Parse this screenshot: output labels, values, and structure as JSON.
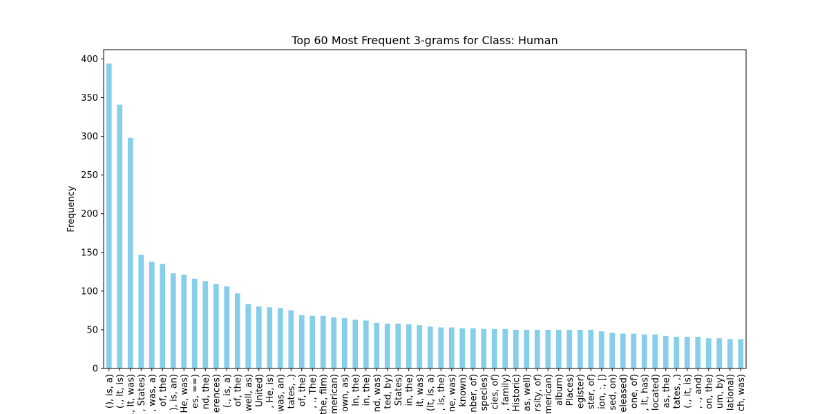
{
  "chart_data": {
    "type": "bar",
    "title": "Top 60 Most Frequent 3-grams for Class: Human",
    "xlabel": "",
    "ylabel": "Frequency",
    "ylim": [
      0,
      412
    ],
    "yticks": [
      0,
      50,
      100,
      150,
      200,
      250,
      300,
      350,
      400
    ],
    "grid": false,
    "legend": "none",
    "bar_color": "#87ceeb",
    "categories": [
      "(), is, a)",
      "(., It, is)",
      "(., It, was)",
      ", States)",
      ", was, a)",
      "of, the)",
      "), is, an)",
      "He, was)",
      "es, ==)",
      "nd, the)",
      "erences)",
      "(., is, a)",
      "of, the)",
      "well, as)",
      "United)",
      ", He, is)",
      "was, an)",
      "tates, .)",
      "of, the)",
      ", ., The)",
      "the, film)",
      "merican)",
      "own, as)",
      "In, the)",
      "in, the)",
      "nd, was)",
      "ted, by)",
      "States)",
      "in, the)",
      "it, was)",
      "(It, is, a)",
      ", is, the)",
      "ne, was)",
      "known)",
      "nber, of)",
      "species)",
      "cies, of)",
      ", family)",
      "Historic)",
      "as, well)",
      "rsity, of)",
      "merican)",
      "album)",
      "Places)",
      "egister)",
      "ster, of)",
      "ion, :, [)",
      "sed, on)",
      "eleased)",
      "one, of)",
      ", It, has)",
      "located)",
      "as, the)",
      "tates, ,)",
      "(., it, is)",
      ", ., and)",
      "on, the)",
      "um, by)",
      "lational)",
      "ch, was)"
    ],
    "values": [
      394,
      341,
      298,
      147,
      138,
      135,
      123,
      121,
      116,
      113,
      109,
      106,
      97,
      83,
      80,
      79,
      78,
      75,
      69,
      68,
      68,
      66,
      65,
      63,
      62,
      59,
      58,
      58,
      57,
      56,
      54,
      53,
      53,
      52,
      52,
      51,
      51,
      51,
      50,
      50,
      50,
      50,
      50,
      50,
      50,
      50,
      48,
      46,
      45,
      45,
      44,
      44,
      42,
      41,
      41,
      41,
      39,
      39,
      38,
      38
    ]
  }
}
